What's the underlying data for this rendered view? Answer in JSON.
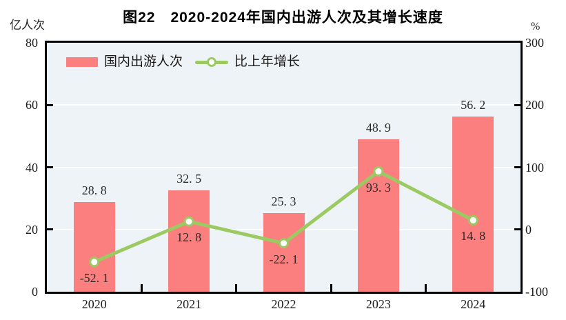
{
  "title": "图22　2020-2024年国内出游人次及其增长速度",
  "colors": {
    "bar": "#fb7f7f",
    "line": "#9bca63",
    "marker_fill": "#ffffff",
    "plot_bg": "#edf3f7",
    "grid": "#ffffff",
    "axis": "#000000",
    "text": "#1c1c1c"
  },
  "chart_data": {
    "type": "bar-line-combo",
    "title": "图22　2020-2024年国内出游人次及其增长速度",
    "categories": [
      "2020",
      "2021",
      "2022",
      "2023",
      "2024"
    ],
    "series": [
      {
        "name": "国内出游人次",
        "type": "bar",
        "axis": "left",
        "unit": "亿人次",
        "color": "#fb7f7f",
        "values": [
          28.8,
          32.5,
          25.3,
          48.9,
          56.2
        ]
      },
      {
        "name": "比上年增长",
        "type": "line",
        "axis": "right",
        "unit": "%",
        "color": "#9bca63",
        "values": [
          -52.1,
          12.8,
          -22.1,
          93.3,
          14.8
        ]
      }
    ],
    "left_axis_label": "亿人次",
    "right_axis_label": "%",
    "left_ylim": [
      0,
      80
    ],
    "right_ylim": [
      -100,
      300
    ],
    "left_ticks": [
      0,
      20,
      40,
      60,
      80
    ],
    "right_ticks": [
      -100,
      0,
      100,
      200,
      300
    ],
    "grid": true,
    "legend_position": "top-left"
  }
}
